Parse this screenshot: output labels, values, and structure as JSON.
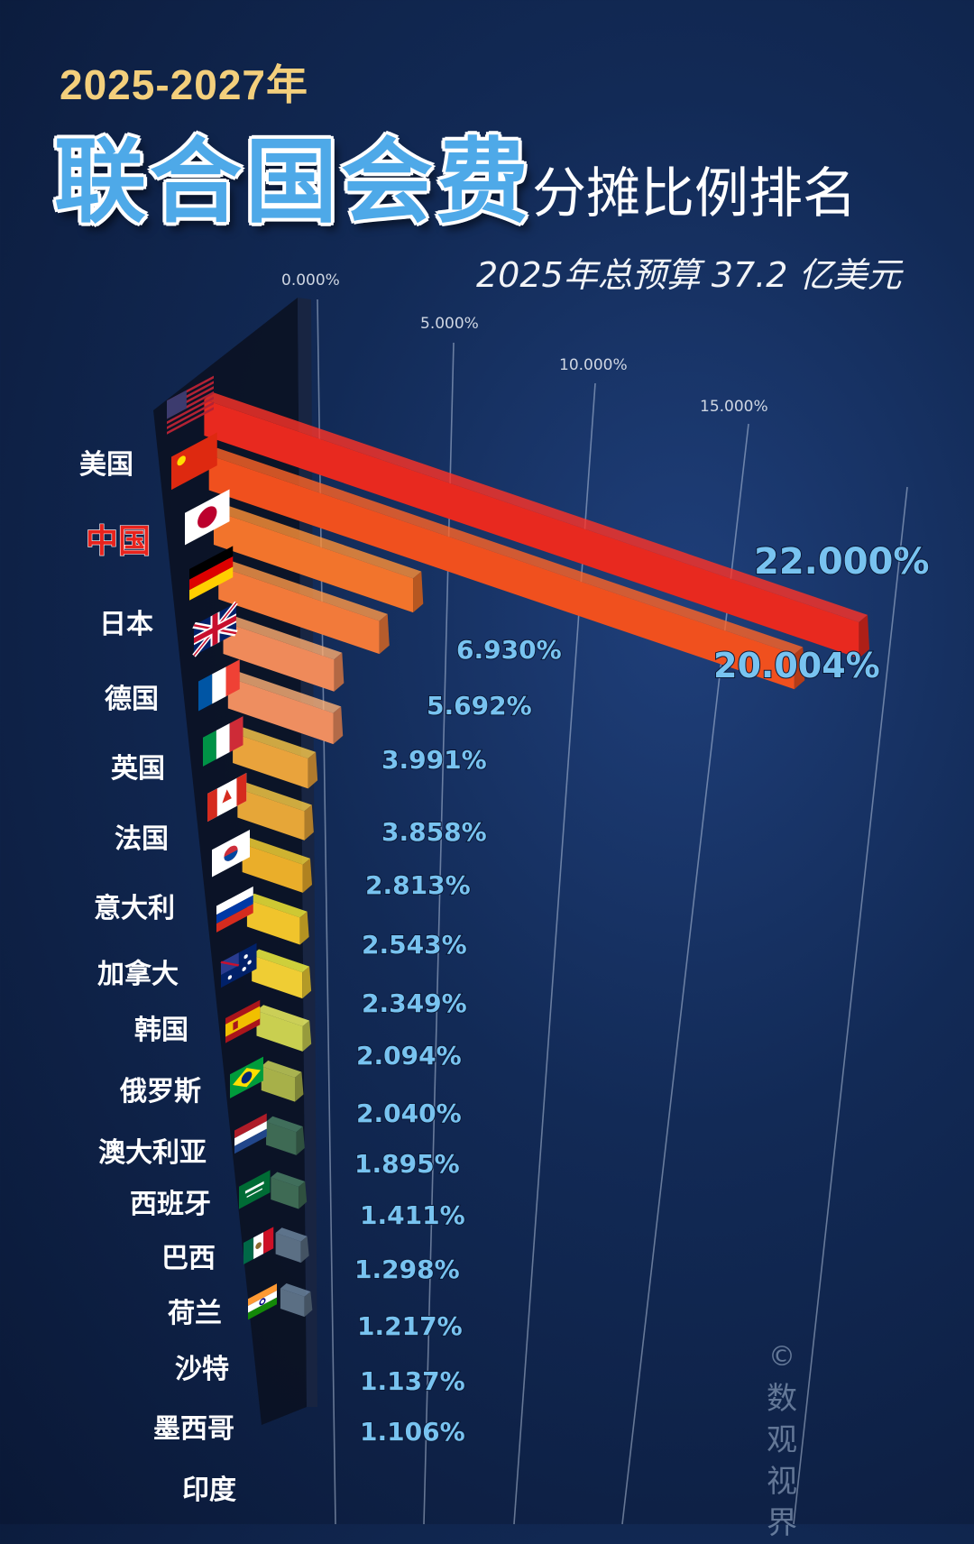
{
  "header": {
    "years": "2025-2027年",
    "title": "联合国会费",
    "subtitle": "分摊比例排名",
    "budget": "2025年总预算 37.2 亿美元"
  },
  "watermark": {
    "symbol": "©",
    "text": "数观视界"
  },
  "colors": {
    "highlight_label": "#e8231d",
    "value_label": "#78c3f0",
    "background": "#122a56"
  },
  "chart_data": {
    "type": "bar",
    "orientation": "horizontal-3d",
    "x_axis_ticks": [
      "0.000%",
      "5.000%",
      "10.000%",
      "15.000%"
    ],
    "xlim": [
      0,
      22
    ],
    "grid": true,
    "categories": [
      "美国",
      "中国",
      "日本",
      "德国",
      "英国",
      "法国",
      "意大利",
      "加拿大",
      "韩国",
      "俄罗斯",
      "澳大利亚",
      "西班牙",
      "巴西",
      "荷兰",
      "沙特",
      "墨西哥",
      "印度"
    ],
    "values": [
      22.0,
      20.004,
      6.93,
      5.692,
      3.991,
      3.858,
      2.813,
      2.543,
      2.349,
      2.094,
      2.04,
      1.895,
      1.411,
      1.298,
      1.217,
      1.137,
      1.106
    ],
    "value_labels": [
      "22.000%",
      "20.004%",
      "6.930%",
      "5.692%",
      "3.991%",
      "3.858%",
      "2.813%",
      "2.543%",
      "2.349%",
      "2.094%",
      "2.040%",
      "1.895%",
      "1.411%",
      "1.298%",
      "1.217%",
      "1.137%",
      "1.106%"
    ],
    "highlight": "中国",
    "bar_colors": [
      "#e8291f",
      "#f0501e",
      "#f2742c",
      "#f27a3a",
      "#ef8a5a",
      "#ee8e60",
      "#e9a33c",
      "#e6a638",
      "#eaae2a",
      "#f0c42c",
      "#efcd34",
      "#c9cf50",
      "#a7b049",
      "#3e6a54",
      "#3e6a54",
      "#5b6f84",
      "#5b6f84"
    ],
    "flags": [
      "usa",
      "china",
      "japan",
      "germany",
      "uk",
      "france",
      "italy",
      "canada",
      "korea",
      "russia",
      "australia",
      "spain",
      "brazil",
      "netherlands",
      "saudi",
      "mexico",
      "india"
    ]
  }
}
